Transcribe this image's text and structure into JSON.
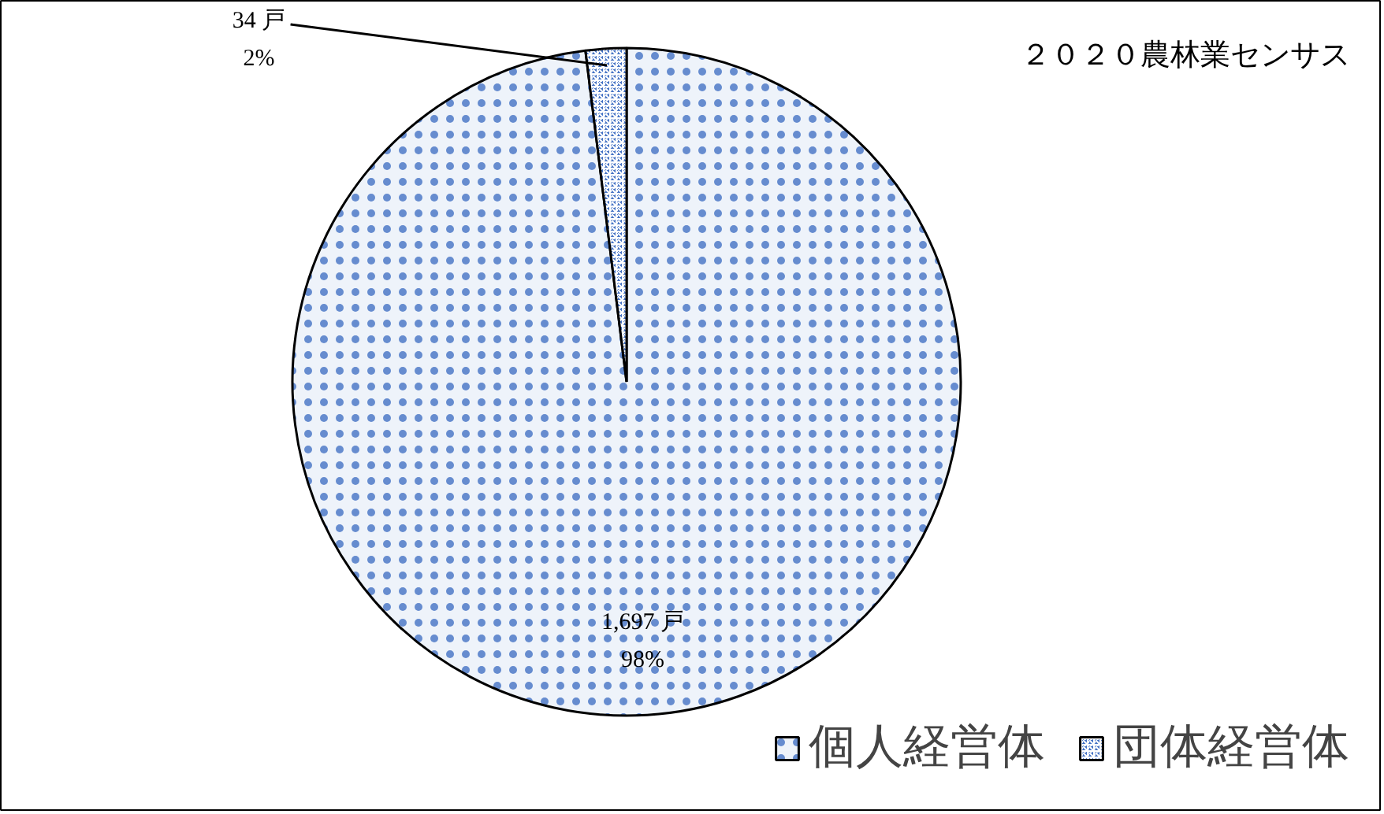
{
  "chart_data": {
    "type": "pie",
    "categories": [
      "個人経営体",
      "団体経営体"
    ],
    "values": [
      1697,
      34
    ],
    "colors": [
      "#eef3fa",
      "#4472c4"
    ],
    "value_labels": [
      "1,697 戸\n98%",
      "34 戸\n2%"
    ],
    "annotations": [
      "２０２０農林業センサス"
    ],
    "legend": "bottom right"
  }
}
